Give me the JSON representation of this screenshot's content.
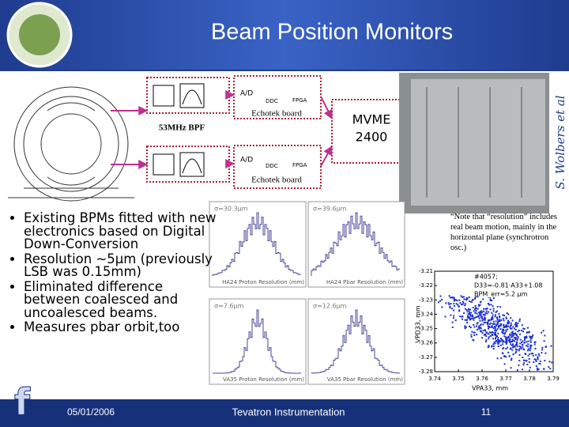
{
  "header": {
    "title": "Beam Position Monitors",
    "author": "S. Wolbers et al"
  },
  "diagram": {
    "filter_label": "53MHz BPF",
    "boards": [
      {
        "adc": "A/D",
        "ddc": "DDC",
        "fpga": "FPGA",
        "label": "Echotek board"
      },
      {
        "adc": "A/D",
        "ddc": "DDC",
        "fpga": "FPGA",
        "label": "Echotek board"
      }
    ],
    "crate": [
      "MVME",
      "2400"
    ]
  },
  "bullets": [
    "Existing BPMs fitted with new electronics based on Digital Down-Conversion",
    "Resolution ~5μm (previously LSB was 0.15mm)",
    "Eliminated difference between coalesced and uncoalesced beams.",
    "Measures pbar orbit,too"
  ],
  "histograms": [
    {
      "sigma": "σ=30.3μm",
      "xlabel": "HA24 Proton Resolution (mm)"
    },
    {
      "sigma": "σ=39.6μm",
      "xlabel": "HA24 Pbar Resolution (mm)"
    },
    {
      "sigma": "σ=7.6μm",
      "xlabel": "VA35 Proton Resolution (mm)"
    },
    {
      "sigma": "σ=12.6μm",
      "xlabel": "VA35 Pbar Resolution (mm)"
    }
  ],
  "note": "“Note that “resolution” includes real beam motion, mainly in the horizontal plane (synchrotron osc.)",
  "scatter": {
    "annotation": [
      "#4057;",
      "D33=-0.81·A33+1.08",
      "BPM_err=5.2 μm"
    ],
    "xlabel": "VPA33, mm",
    "ylabel": "VPD33, mm",
    "xlim": [
      3.74,
      3.79
    ],
    "ylim": [
      -3.28,
      -3.21
    ],
    "xticks": [
      3.74,
      3.75,
      3.76,
      3.77,
      3.78,
      3.79
    ],
    "yticks": [
      -3.21,
      -3.22,
      -3.23,
      -3.24,
      -3.25,
      -3.26,
      -3.27,
      -3.28
    ]
  },
  "footer": {
    "date": "05/01/2006",
    "title": "Tevatron Instrumentation",
    "page": "11"
  }
}
